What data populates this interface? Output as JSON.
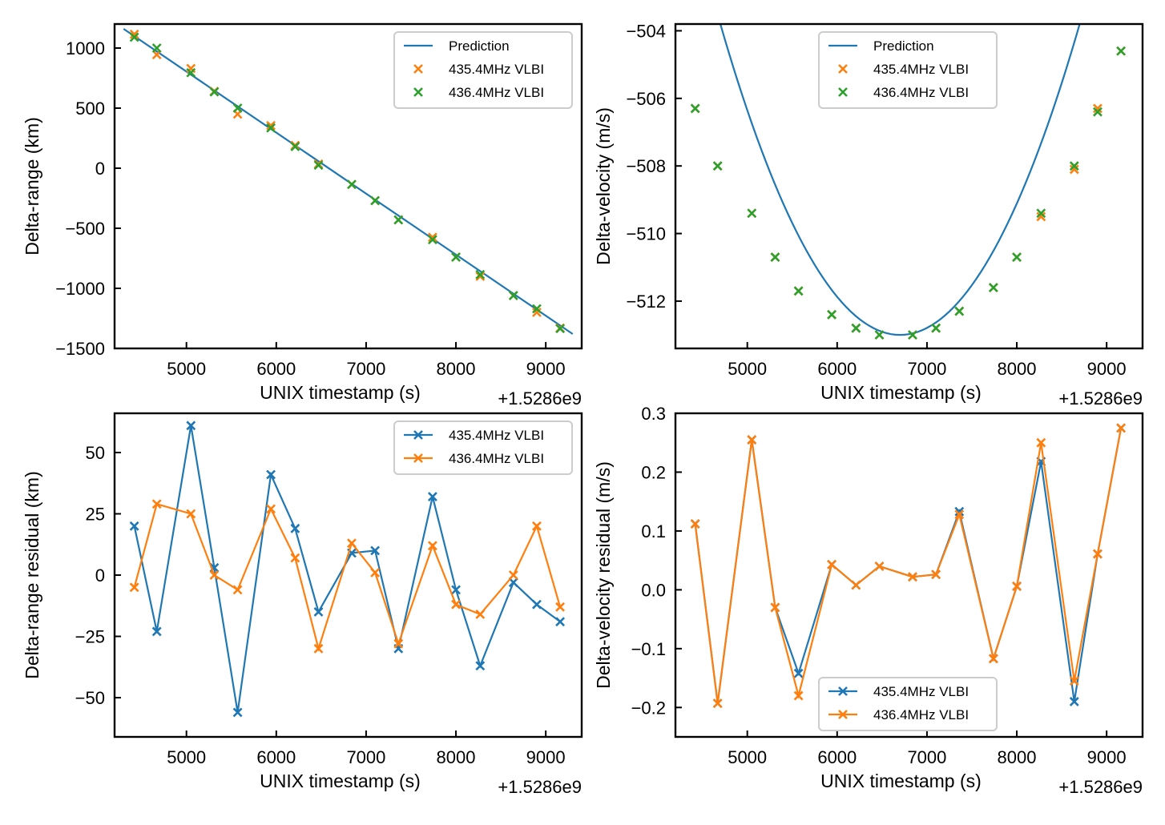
{
  "chart_data": [
    {
      "id": "p1",
      "type": "line+scatter",
      "xlabel": "UNIX timestamp (s)",
      "ylabel": "Delta-range (km)",
      "x_offset_label": "+1.5286e9",
      "xlim": [
        4200,
        9400
      ],
      "ylim": [
        -1500,
        1200
      ],
      "xticks": [
        5000,
        6000,
        7000,
        8000,
        9000
      ],
      "yticks": [
        1000,
        500,
        0,
        -500,
        -1000,
        -1500
      ],
      "ytick_labels": [
        "1000",
        "500",
        "0",
        "−500",
        "−1000",
        "−1500"
      ],
      "legend_position": "top-right",
      "series": [
        {
          "name": "Prediction",
          "kind": "line",
          "color": "#1f77b4",
          "x": [
            4300,
            9300
          ],
          "y": [
            1160,
            -1380
          ]
        },
        {
          "name": "435.4MHz VLBI",
          "kind": "scatter",
          "color": "#ff7f0e",
          "x": [
            4420,
            4670,
            5050,
            5310,
            5570,
            5940,
            6210,
            6470,
            6840,
            7100,
            7360,
            7740,
            8000,
            8270,
            8640,
            8900,
            9160
          ],
          "y": [
            1115,
            945,
            830,
            640,
            450,
            355,
            190,
            35,
            -135,
            -270,
            -430,
            -575,
            -740,
            -900,
            -1060,
            -1200,
            -1330
          ]
        },
        {
          "name": "436.4MHz VLBI",
          "kind": "scatter",
          "color": "#2ca02c",
          "x": [
            4420,
            4670,
            5050,
            5310,
            5570,
            5940,
            6210,
            6470,
            6840,
            7100,
            7360,
            7740,
            8000,
            8270,
            8640,
            8900,
            9160
          ],
          "y": [
            1090,
            1000,
            795,
            635,
            500,
            335,
            180,
            25,
            -135,
            -270,
            -430,
            -595,
            -740,
            -885,
            -1060,
            -1170,
            -1335
          ]
        }
      ]
    },
    {
      "id": "p2",
      "type": "line+scatter",
      "xlabel": "UNIX timestamp (s)",
      "ylabel": "Delta-velocity (m/s)",
      "x_offset_label": "+1.5286e9",
      "xlim": [
        4200,
        9400
      ],
      "ylim": [
        -513.4,
        -503.8
      ],
      "xticks": [
        5000,
        6000,
        7000,
        8000,
        9000
      ],
      "yticks": [
        -504,
        -506,
        -508,
        -510,
        -512
      ],
      "ytick_labels": [
        "−504",
        "−506",
        "−508",
        "−510",
        "−512"
      ],
      "legend_position": "top-center",
      "series": [
        {
          "name": "Prediction",
          "kind": "curve",
          "color": "#1f77b4",
          "x_range": [
            4300,
            9300
          ],
          "quadratic": {
            "vertex_x": 6700,
            "vertex_y": -513.0,
            "a": 2.3e-06
          }
        },
        {
          "name": "435.4MHz VLBI",
          "kind": "scatter",
          "color": "#ff7f0e",
          "x": [
            4420,
            4670,
            5050,
            5310,
            5570,
            5940,
            6210,
            6470,
            6840,
            7100,
            7360,
            7740,
            8000,
            8270,
            8640,
            8900,
            9160
          ],
          "y": [
            -506.3,
            -508.0,
            -509.4,
            -510.7,
            -511.7,
            -512.4,
            -512.8,
            -513.0,
            -513.0,
            -512.8,
            -512.3,
            -511.6,
            -510.7,
            -509.5,
            -508.1,
            -506.3,
            -504.6
          ]
        },
        {
          "name": "436.4MHz VLBI",
          "kind": "scatter",
          "color": "#2ca02c",
          "x": [
            4420,
            4670,
            5050,
            5310,
            5570,
            5940,
            6210,
            6470,
            6840,
            7100,
            7360,
            7740,
            8000,
            8270,
            8640,
            8900,
            9160
          ],
          "y": [
            -506.3,
            -508.0,
            -509.4,
            -510.7,
            -511.7,
            -512.4,
            -512.8,
            -513.0,
            -513.0,
            -512.8,
            -512.3,
            -511.6,
            -510.7,
            -509.4,
            -508.0,
            -506.4,
            -504.6
          ]
        }
      ]
    },
    {
      "id": "p3",
      "type": "line",
      "xlabel": "UNIX timestamp (s)",
      "ylabel": "Delta-range residual (km)",
      "x_offset_label": "+1.5286e9",
      "xlim": [
        4200,
        9400
      ],
      "ylim": [
        -66,
        66
      ],
      "xticks": [
        5000,
        6000,
        7000,
        8000,
        9000
      ],
      "yticks": [
        50,
        25,
        0,
        -25,
        -50
      ],
      "ytick_labels": [
        "50",
        "25",
        "0",
        "−25",
        "−50"
      ],
      "legend_position": "top-right",
      "series": [
        {
          "name": "435.4MHz VLBI",
          "kind": "line-marker",
          "color": "#1f77b4",
          "x": [
            4420,
            4670,
            5050,
            5310,
            5570,
            5940,
            6210,
            6470,
            6840,
            7100,
            7360,
            7740,
            8000,
            8270,
            8640,
            8900,
            9160
          ],
          "y": [
            20,
            -23,
            61,
            3,
            -56,
            41,
            19,
            -15,
            9,
            10,
            -30,
            32,
            -6,
            -37,
            -3,
            -12,
            -19
          ]
        },
        {
          "name": "436.4MHz VLBI",
          "kind": "line-marker",
          "color": "#ff7f0e",
          "x": [
            4420,
            4670,
            5050,
            5310,
            5570,
            5940,
            6210,
            6470,
            6840,
            7100,
            7360,
            7740,
            8000,
            8270,
            8640,
            8900,
            9160
          ],
          "y": [
            -5,
            29,
            25,
            0,
            -6,
            27,
            7,
            -30,
            13,
            1,
            -28,
            12,
            -12,
            -16,
            0,
            20,
            -13
          ]
        }
      ]
    },
    {
      "id": "p4",
      "type": "line",
      "xlabel": "UNIX timestamp (s)",
      "ylabel": "Delta-velocity residual (m/s)",
      "x_offset_label": "+1.5286e9",
      "xlim": [
        4200,
        9400
      ],
      "ylim": [
        -0.25,
        0.3
      ],
      "xticks": [
        5000,
        6000,
        7000,
        8000,
        9000
      ],
      "yticks": [
        0.3,
        0.2,
        0.1,
        0.0,
        -0.1,
        -0.2
      ],
      "ytick_labels": [
        "0.3",
        "0.2",
        "0.1",
        "0.0",
        "−0.1",
        "−0.2"
      ],
      "legend_position": "bottom-center",
      "series": [
        {
          "name": "435.4MHz VLBI",
          "kind": "line-marker",
          "color": "#1f77b4",
          "x": [
            4420,
            4670,
            5050,
            5310,
            5570,
            5940,
            6210,
            6470,
            6840,
            7100,
            7360,
            7740,
            8000,
            8270,
            8640,
            8900,
            9160
          ],
          "y": [
            0.112,
            -0.193,
            0.255,
            -0.03,
            -0.142,
            0.043,
            0.008,
            0.04,
            0.022,
            0.026,
            0.133,
            -0.117,
            0.006,
            0.218,
            -0.19,
            0.061,
            0.275
          ]
        },
        {
          "name": "436.4MHz VLBI",
          "kind": "line-marker",
          "color": "#ff7f0e",
          "x": [
            4420,
            4670,
            5050,
            5310,
            5570,
            5940,
            6210,
            6470,
            6840,
            7100,
            7360,
            7740,
            8000,
            8270,
            8640,
            8900,
            9160
          ],
          "y": [
            0.112,
            -0.193,
            0.255,
            -0.03,
            -0.18,
            0.043,
            0.008,
            0.04,
            0.022,
            0.026,
            0.128,
            -0.117,
            0.006,
            0.25,
            -0.155,
            0.061,
            0.275
          ]
        }
      ]
    }
  ]
}
